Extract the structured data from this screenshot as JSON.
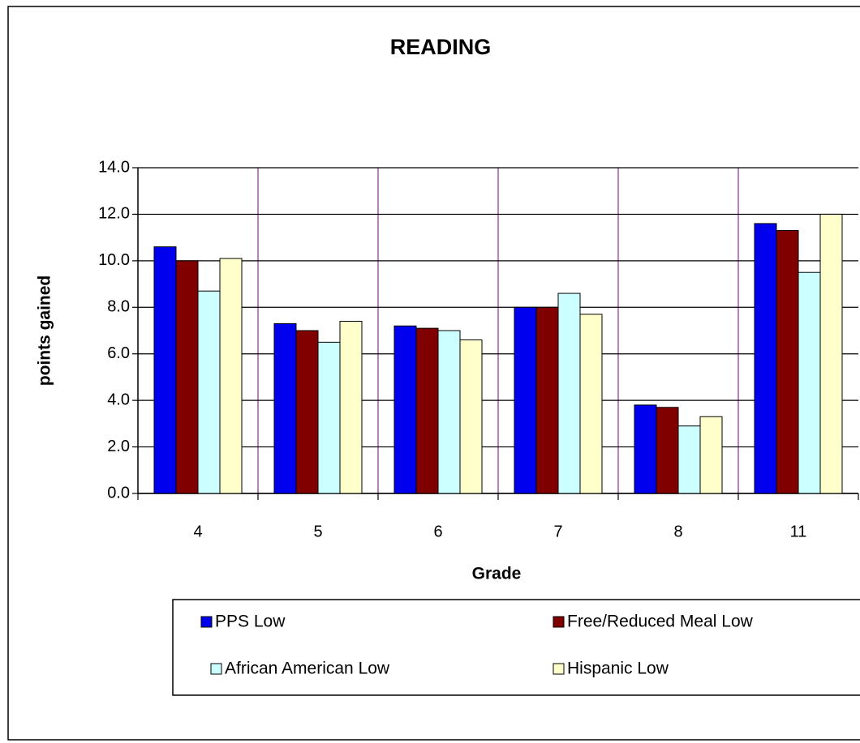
{
  "chart_data": {
    "type": "bar",
    "title": "READING",
    "x_label": "Grade",
    "y_label": "points gained",
    "categories": [
      "4",
      "5",
      "6",
      "7",
      "8",
      "11"
    ],
    "series": [
      {
        "name": "PPS Low",
        "color": "#0000ee",
        "values": [
          10.6,
          7.3,
          7.2,
          8.0,
          3.8,
          11.6
        ]
      },
      {
        "name": "Free/Reduced Meal Low",
        "color": "#800000",
        "values": [
          10.0,
          7.0,
          7.1,
          8.0,
          3.7,
          11.3
        ]
      },
      {
        "name": "African American Low",
        "color": "#ccffff",
        "values": [
          8.7,
          6.5,
          7.0,
          8.6,
          2.9,
          9.5
        ]
      },
      {
        "name": "Hispanic Low",
        "color": "#ffffcc",
        "values": [
          10.1,
          7.4,
          6.6,
          7.7,
          3.3,
          12.0
        ]
      }
    ],
    "ylim": [
      0,
      14
    ],
    "yticks": [
      {
        "value": 0,
        "label": "0.0"
      },
      {
        "value": 2,
        "label": "2.0"
      },
      {
        "value": 4,
        "label": "4.0"
      },
      {
        "value": 6,
        "label": "6.0"
      },
      {
        "value": 8,
        "label": "8.0"
      },
      {
        "value": 10,
        "label": "10.0"
      },
      {
        "value": 12,
        "label": "12.0"
      },
      {
        "value": 14,
        "label": "14.0"
      }
    ],
    "grid": true
  }
}
